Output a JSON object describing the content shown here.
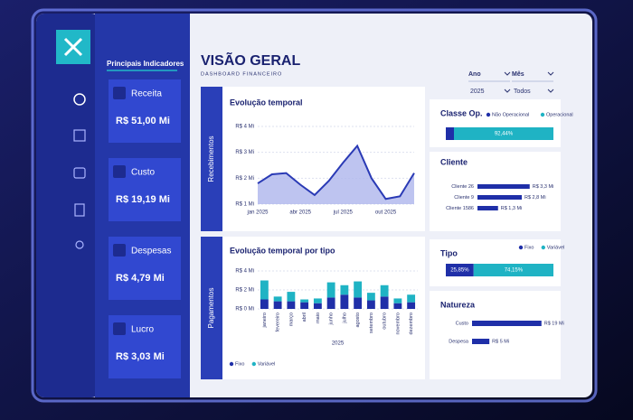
{
  "sidebar": {
    "heading": "Principais Indicadores"
  },
  "kpis": [
    {
      "label": "Receita",
      "value": "R$ 51,00 Mi"
    },
    {
      "label": "Custo",
      "value": "R$ 19,19 Mi"
    },
    {
      "label": "Despesas",
      "value": "R$ 4,79 Mi"
    },
    {
      "label": "Lucro",
      "value": "R$ 3,03 Mi"
    }
  ],
  "header": {
    "title": "VISÃO GERAL",
    "subtitle": "DASHBOARD FINANCEIRO"
  },
  "filters": [
    {
      "label": "Ano",
      "value": "2025"
    },
    {
      "label": "Mês",
      "value": "Todos"
    }
  ],
  "sections": [
    "Recebimentos",
    "Pagamentos"
  ],
  "chart_data": [
    {
      "type": "line",
      "title": "Evolução temporal",
      "categories": [
        "jan 2025",
        null,
        null,
        "abr 2025",
        null,
        null,
        "jul 2025",
        null,
        null,
        "out 2025",
        null,
        null
      ],
      "values": [
        1.8,
        2.15,
        2.2,
        1.75,
        1.35,
        1.9,
        2.6,
        3.25,
        2.0,
        1.2,
        1.3,
        2.2
      ],
      "color": "#2a3ab5",
      "ylim": [
        1,
        4
      ],
      "yticks": [
        {
          "value": 1,
          "label": "R$ 1 Mi"
        },
        {
          "value": 2,
          "label": "R$ 2 Mi"
        },
        {
          "value": 3,
          "label": "R$ 3 Mi"
        },
        {
          "value": 4,
          "label": "R$ 4 Mi"
        }
      ]
    },
    {
      "type": "bar",
      "orientation": "horizontal",
      "stacked": true,
      "title": "Classe Op.",
      "xlim": [
        0,
        100
      ],
      "series": [
        {
          "name": "Não Operacional",
          "color": "#1f2fa8",
          "values": [
            7.56
          ]
        },
        {
          "name": "Operacional",
          "color": "#1fb3c4",
          "values": [
            92.44
          ],
          "value_labels": [
            "92,44%"
          ]
        }
      ]
    },
    {
      "type": "bar",
      "orientation": "horizontal",
      "title": "Cliente",
      "xlim": [
        0,
        4
      ],
      "color": "#1f2fa8",
      "categories": [
        "Cliente 26",
        "Cliente 9",
        "Cliente 1586"
      ],
      "values": [
        3.3,
        2.8,
        1.3
      ],
      "value_labels": [
        "R$ 3,3 Mi",
        "R$ 2,8 Mi",
        "R$ 1,3 Mi"
      ]
    },
    {
      "type": "bar",
      "stacked": true,
      "title": "Evolução temporal por tipo",
      "x_label": "2025",
      "categories": [
        "janeiro",
        "fevereiro",
        "março",
        "abril",
        "maio",
        "junho",
        "julho",
        "agosto",
        "setembro",
        "outubro",
        "novembro",
        "dezembro"
      ],
      "series": [
        {
          "name": "Fixo",
          "color": "#1f2fa8",
          "values": [
            1.0,
            0.8,
            0.8,
            0.7,
            0.6,
            1.2,
            1.5,
            1.2,
            0.9,
            1.3,
            0.6,
            0.7
          ]
        },
        {
          "name": "Variável",
          "color": "#1fb3c4",
          "values": [
            2.0,
            0.5,
            1.0,
            0.3,
            0.5,
            1.6,
            1.0,
            1.7,
            0.8,
            1.2,
            0.5,
            0.8
          ]
        }
      ],
      "ylim": [
        0,
        4
      ],
      "yticks": [
        {
          "value": 0,
          "label": "R$ 0 Mi"
        },
        {
          "value": 2,
          "label": "R$ 2 Mi"
        },
        {
          "value": 4,
          "label": "R$ 4 Mi"
        }
      ]
    },
    {
      "type": "bar",
      "orientation": "horizontal",
      "stacked": true,
      "title": "Tipo",
      "xlim": [
        0,
        100
      ],
      "series": [
        {
          "name": "Fixo",
          "color": "#1f2fa8",
          "values": [
            25.85
          ],
          "value_labels": [
            "25,85%"
          ]
        },
        {
          "name": "Variável",
          "color": "#1fb3c4",
          "values": [
            74.15
          ],
          "value_labels": [
            "74,15%"
          ]
        }
      ]
    },
    {
      "type": "bar",
      "orientation": "horizontal",
      "title": "Natureza",
      "xlim": [
        0,
        20
      ],
      "color": "#1f2fa8",
      "categories": [
        "Custo",
        "Despesa"
      ],
      "values": [
        19.19,
        4.79
      ],
      "value_labels": [
        "R$ 19 Mi",
        "R$ 5 Mi"
      ]
    }
  ]
}
